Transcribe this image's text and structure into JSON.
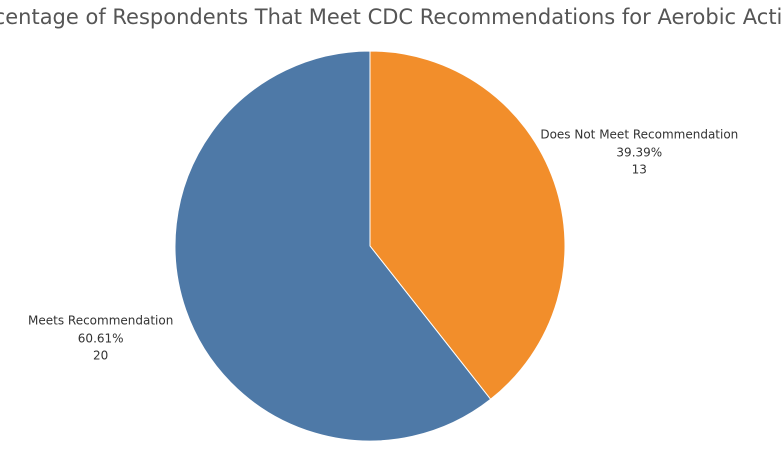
{
  "chart_data": {
    "type": "pie",
    "title": "Percentage of Respondents That Meet CDC Recommendations for Aerobic Activity",
    "categories": [
      "Does Not Meet Recommendation",
      "Meets Recommendation"
    ],
    "values": [
      39.39,
      60.61
    ],
    "value_labels": [
      "39.39%",
      "60.61%"
    ],
    "counts": [
      13,
      20
    ],
    "colors": [
      "#f28e2b",
      "#4e79a7"
    ]
  }
}
